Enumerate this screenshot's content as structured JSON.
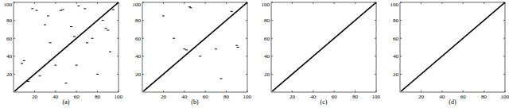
{
  "chart_data": [
    {
      "type": "scatter",
      "title": "(a)",
      "xlim": [
        0,
        100
      ],
      "ylim": [
        0,
        100
      ],
      "xticks": [
        20,
        40,
        60,
        80,
        100
      ],
      "yticks": [
        20,
        40,
        60,
        80,
        100
      ],
      "series": [
        {
          "type": "line",
          "color": "#000000",
          "x": [
            1,
            100
          ],
          "values": [
            1,
            100
          ]
        },
        {
          "type": "scatter",
          "color": "#000000",
          "marker": "dash",
          "x": [
            18,
            22,
            45,
            47,
            68,
            88,
            90,
            10,
            8,
            75,
            60,
            35,
            25,
            85,
            55,
            30,
            92,
            14,
            70,
            40,
            95,
            62,
            50,
            80,
            33,
            58
          ],
          "values": [
            93,
            91,
            91,
            92,
            93,
            71,
            69,
            35,
            32,
            60,
            30,
            55,
            18,
            80,
            73,
            75,
            45,
            12,
            55,
            30,
            92,
            96,
            10,
            20,
            85,
            62
          ]
        }
      ]
    },
    {
      "type": "scatter",
      "title": "(b)",
      "xlim": [
        0,
        100
      ],
      "ylim": [
        0,
        100
      ],
      "xticks": [
        20,
        40,
        60,
        80,
        100
      ],
      "yticks": [
        20,
        40,
        60,
        80,
        100
      ],
      "series": [
        {
          "type": "line",
          "color": "#000000",
          "x": [
            1,
            100
          ],
          "values": [
            1,
            100
          ]
        },
        {
          "type": "scatter",
          "color": "#000000",
          "marker": "dash",
          "x": [
            45,
            46,
            40,
            42,
            90,
            91,
            70,
            30,
            20,
            75,
            55,
            85
          ],
          "values": [
            95,
            94,
            48,
            47,
            52,
            50,
            48,
            60,
            85,
            15,
            40,
            90
          ]
        }
      ]
    },
    {
      "type": "scatter",
      "title": "(c)",
      "xlim": [
        0,
        100
      ],
      "ylim": [
        0,
        100
      ],
      "xticks": [
        20,
        40,
        60,
        80,
        100
      ],
      "yticks": [
        20,
        40,
        60,
        80,
        100
      ],
      "series": [
        {
          "type": "line",
          "color": "#000000",
          "x": [
            1,
            100
          ],
          "values": [
            1,
            100
          ]
        }
      ]
    },
    {
      "type": "scatter",
      "title": "(d)",
      "xlim": [
        0,
        100
      ],
      "ylim": [
        0,
        100
      ],
      "xticks": [
        20,
        40,
        60,
        80,
        100
      ],
      "yticks": [
        20,
        40,
        60,
        80,
        100
      ],
      "series": [
        {
          "type": "line",
          "color": "#000000",
          "x": [
            1,
            100
          ],
          "values": [
            1,
            100
          ]
        }
      ]
    }
  ]
}
